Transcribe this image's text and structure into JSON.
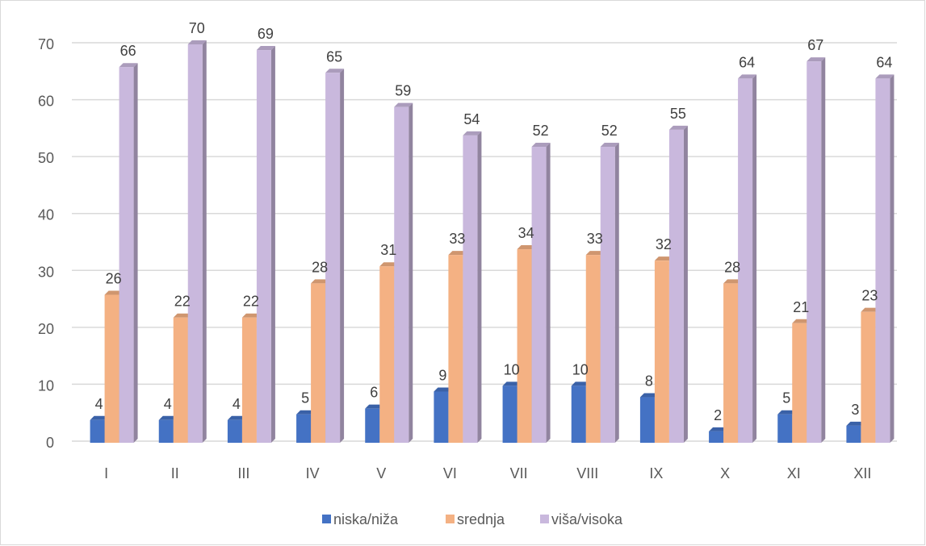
{
  "chart_data": {
    "type": "bar",
    "title": "",
    "xlabel": "",
    "ylabel": "",
    "ylim": [
      0,
      70
    ],
    "yticks": [
      0,
      10,
      20,
      30,
      40,
      50,
      60,
      70
    ],
    "grid": true,
    "legend_position": "bottom",
    "categories": [
      "I",
      "II",
      "III",
      "IV",
      "V",
      "VI",
      "VII",
      "VIII",
      "IX",
      "X",
      "XI",
      "XII"
    ],
    "series": [
      {
        "name": "niska/niža",
        "color": "#4472c4",
        "values": [
          4,
          4,
          4,
          5,
          6,
          9,
          10,
          10,
          8,
          2,
          5,
          3
        ]
      },
      {
        "name": "srednja",
        "color": "#f4b183",
        "values": [
          26,
          22,
          22,
          28,
          31,
          33,
          34,
          33,
          32,
          28,
          21,
          23
        ]
      },
      {
        "name": "viša/visoka",
        "color": "#c9b8dd",
        "values": [
          66,
          70,
          69,
          65,
          59,
          54,
          52,
          52,
          55,
          64,
          67,
          64
        ]
      }
    ]
  }
}
